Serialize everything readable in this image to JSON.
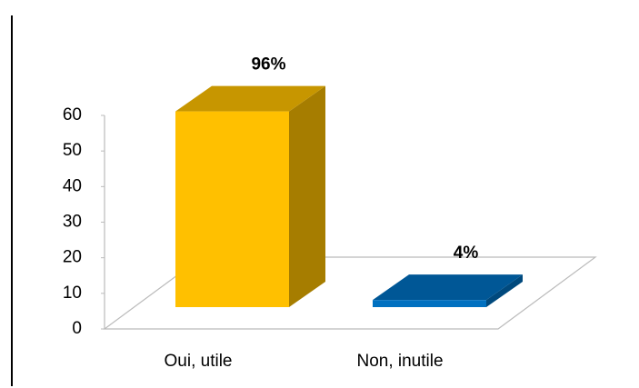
{
  "chart_data": {
    "type": "bar3d",
    "categories": [
      "Oui, utile",
      "Non, inutile"
    ],
    "values": [
      55,
      2
    ],
    "value_labels": [
      "96%",
      "4%"
    ],
    "colors": [
      "#FFC000",
      "#0070C0"
    ],
    "ylim": [
      0,
      60
    ],
    "yticks": [
      0,
      10,
      20,
      30,
      40,
      50,
      60
    ]
  }
}
